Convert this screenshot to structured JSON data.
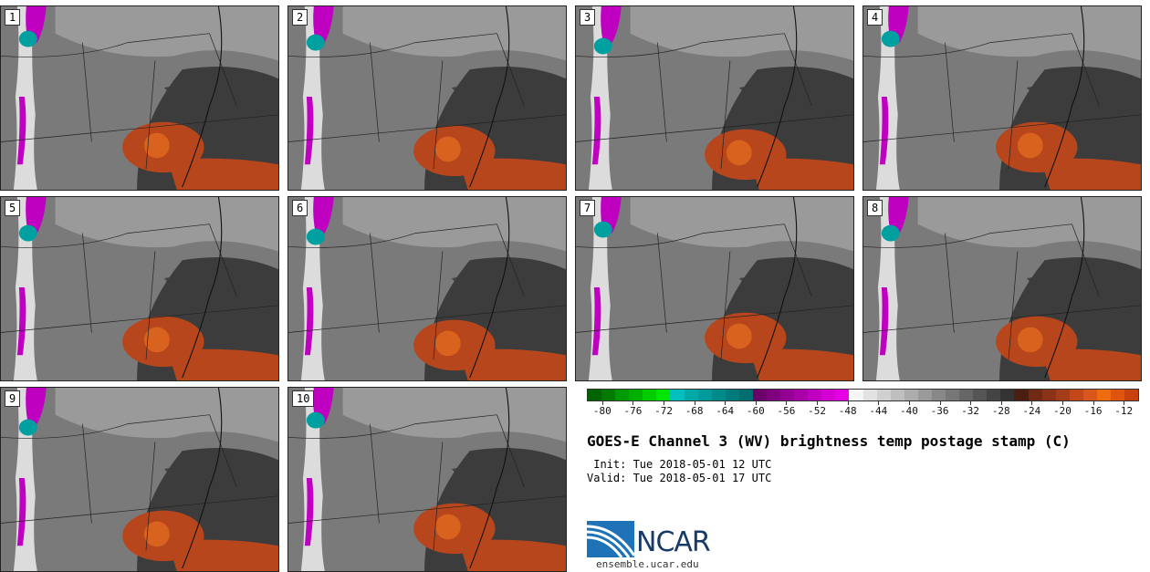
{
  "panels": [
    {
      "label": "1"
    },
    {
      "label": "2"
    },
    {
      "label": "3"
    },
    {
      "label": "4"
    },
    {
      "label": "5"
    },
    {
      "label": "6"
    },
    {
      "label": "7"
    },
    {
      "label": "8"
    },
    {
      "label": "9"
    },
    {
      "label": "10"
    }
  ],
  "colorbar": {
    "colors": [
      "#006400",
      "#007a00",
      "#009900",
      "#00b000",
      "#00cc00",
      "#00e600",
      "#00bfbf",
      "#00a8a8",
      "#009a9a",
      "#008b8b",
      "#007a7a",
      "#006e6e",
      "#6b006b",
      "#7f007f",
      "#940094",
      "#aa00aa",
      "#c000c0",
      "#d400d4",
      "#e600e6",
      "#f5f5f5",
      "#e2e2e2",
      "#d0d0d0",
      "#bfbfbf",
      "#acacac",
      "#9a9a9a",
      "#888888",
      "#777777",
      "#666666",
      "#555555",
      "#444444",
      "#333333",
      "#4a1f12",
      "#6e2a14",
      "#8a3316",
      "#a33c18",
      "#c2471a",
      "#d9561c",
      "#ee6b10",
      "#e05410",
      "#c84010"
    ],
    "ticks": [
      "-80",
      "-76",
      "-72",
      "-68",
      "-64",
      "-60",
      "-56",
      "-52",
      "-48",
      "-44",
      "-40",
      "-36",
      "-32",
      "-28",
      "-24",
      "-20",
      "-16",
      "-12"
    ]
  },
  "title": "GOES-E Channel 3 (WV) brightness temp postage stamp (C)",
  "init_line": " Init: Tue 2018-05-01 12 UTC",
  "valid_line": "Valid: Tue 2018-05-01 17 UTC",
  "logo_text": "NCAR",
  "url": "ensemble.ucar.edu",
  "colors": {
    "dark_gray": "#3c3c3c",
    "mid_gray": "#7a7a7a",
    "light_gray": "#a8a8a8",
    "orange": "#b8461c",
    "bright_orange": "#d8621e",
    "magenta": "#c000c0",
    "cyan": "#00a0a0"
  }
}
